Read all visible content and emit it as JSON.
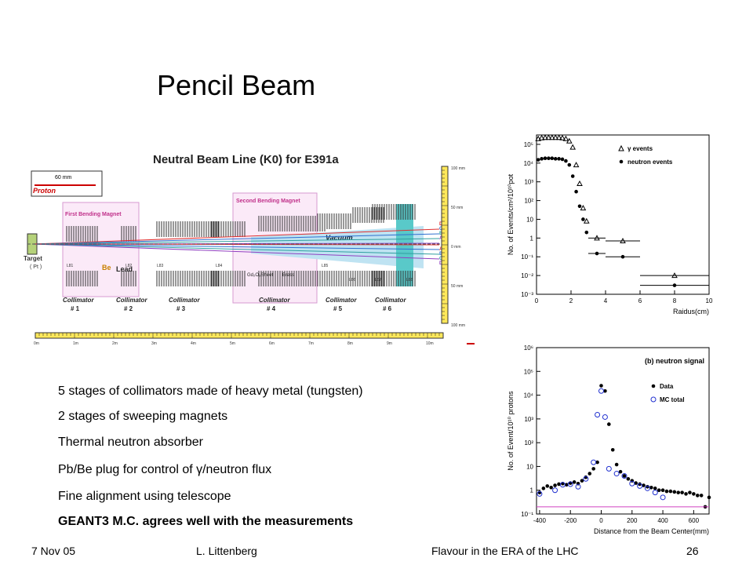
{
  "slide": {
    "title": "Pencil Beam",
    "bullets": [
      "5 stages of collimators made of heavy metal (tungsten)",
      "2 stages of sweeping magnets",
      "Thermal neutron absorber",
      "Pb/Be plug for control of  γ/neutron flux",
      "Fine alignment using telescope",
      "GEANT3 M.C. agrees well with the measurements"
    ],
    "footer": {
      "date": "7 Nov 05",
      "author": "L. Littenberg",
      "event": "Flavour in the ERA of the LHC",
      "page": "26"
    }
  },
  "diagram": {
    "title": "Neutral Beam Line (K0) for E391a",
    "proton": "Proton",
    "scale": "60 mm",
    "target": "Target",
    "target_sub": "( Pt )",
    "first_magnet": "First Bending Magnet",
    "second_magnet": "Second Bending Magnet",
    "be": "Be",
    "lead": "Lead",
    "vacuum": "Vacuum",
    "gd": "Gd₂O₃Sheet",
    "brass": "Brass",
    "collimators": [
      "Collimator\n# 1",
      "Collimator\n# 2",
      "Collimator\n# 3",
      "Collimator\n# 4",
      "Collimator\n# 5",
      "Collimator\n# 6"
    ],
    "right_scale": [
      "100 mm",
      "50 mm",
      "0 mm",
      "50 mm",
      "100 mm"
    ],
    "bottom_scale": [
      "0m",
      "1m",
      "2m",
      "3m",
      "4m",
      "5m",
      "6m",
      "7m",
      "8m",
      "9m",
      "10m"
    ],
    "beam_labels": [
      "D",
      "C",
      "B",
      "A",
      "A",
      "B",
      "C",
      "D"
    ],
    "section_labels": [
      "L81",
      "L82",
      "L83",
      "L84",
      "L85",
      "L86",
      "L87",
      "L88"
    ]
  },
  "chart_data": [
    {
      "type": "scatter",
      "xlabel": "Raidus(cm)",
      "ylabel": "No. of Events/cm²/10¹⁰pot",
      "xlim": [
        0,
        10
      ],
      "ylim_log10": [
        -3,
        5.5
      ],
      "x_ticks": [
        "0",
        "2",
        "4",
        "6",
        "8",
        "10"
      ],
      "y_ticks": [
        "10⁻³",
        "10⁻²",
        "10⁻¹",
        "1",
        "10",
        "10²",
        "10³",
        "10⁴",
        "10⁵"
      ],
      "series": [
        {
          "name": "γ events",
          "marker": "triangle-open",
          "x": [
            0.1,
            0.3,
            0.5,
            0.7,
            0.9,
            1.1,
            1.3,
            1.5,
            1.7,
            1.9,
            2.1,
            2.3,
            2.5,
            2.7,
            2.9,
            3.5,
            5.0,
            8.0
          ],
          "y": [
            200000,
            220000,
            230000,
            230000,
            230000,
            230000,
            230000,
            220000,
            200000,
            150000,
            70000,
            8000,
            800,
            40,
            8,
            1.0,
            0.7,
            0.01
          ]
        },
        {
          "name": "neutron events",
          "marker": "dot",
          "x": [
            0.1,
            0.3,
            0.5,
            0.7,
            0.9,
            1.1,
            1.3,
            1.5,
            1.7,
            1.9,
            2.1,
            2.3,
            2.5,
            2.7,
            2.9,
            3.5,
            5.0,
            8.0
          ],
          "y": [
            15000,
            17000,
            18000,
            18000,
            18000,
            17000,
            17000,
            16000,
            13000,
            8000,
            2000,
            300,
            50,
            10,
            2,
            0.15,
            0.1,
            0.003
          ]
        }
      ]
    },
    {
      "type": "scatter",
      "title": "(b) neutron signal",
      "xlabel": "Distance from the Beam Center(mm)",
      "ylabel": "No. of Event/10¹⁰ protons",
      "xlim": [
        -420,
        700
      ],
      "ylim_log10": [
        -1,
        6
      ],
      "x_ticks": [
        "-400",
        "-200",
        "0",
        "200",
        "400",
        "600"
      ],
      "y_ticks": [
        "10⁻¹",
        "1",
        "10",
        "10²",
        "10³",
        "10⁴",
        "10⁵",
        "10⁶"
      ],
      "series": [
        {
          "name": "Data",
          "marker": "dot",
          "x": [
            -400,
            -375,
            -350,
            -325,
            -300,
            -275,
            -250,
            -225,
            -200,
            -175,
            -150,
            -125,
            -100,
            -75,
            -50,
            -25,
            0,
            25,
            50,
            75,
            100,
            125,
            150,
            175,
            200,
            225,
            250,
            275,
            300,
            325,
            350,
            375,
            400,
            425,
            450,
            475,
            500,
            525,
            550,
            575,
            600,
            625,
            650,
            675,
            700
          ],
          "y": [
            0.8,
            1.2,
            1.5,
            1.3,
            1.6,
            1.8,
            1.9,
            1.7,
            2.0,
            2.2,
            1.9,
            2.5,
            3.5,
            5,
            8,
            15,
            25000,
            15000,
            600,
            50,
            12,
            6,
            4,
            3,
            2.5,
            2,
            1.8,
            1.6,
            1.4,
            1.3,
            1.2,
            1.0,
            1.0,
            0.9,
            0.9,
            0.85,
            0.8,
            0.8,
            0.7,
            0.8,
            0.7,
            0.6,
            0.6,
            0.2,
            0.5
          ]
        },
        {
          "name": "MC total",
          "marker": "circle-open",
          "x": [
            -400,
            -300,
            -250,
            -200,
            -150,
            -100,
            -50,
            -25,
            0,
            25,
            50,
            100,
            150,
            200,
            250,
            300,
            350,
            400
          ],
          "y": [
            0.7,
            1.0,
            1.7,
            1.8,
            1.4,
            3,
            15,
            1500,
            15000,
            1200,
            8,
            5,
            4,
            1.9,
            1.5,
            1.2,
            0.8,
            0.5
          ]
        }
      ]
    }
  ]
}
